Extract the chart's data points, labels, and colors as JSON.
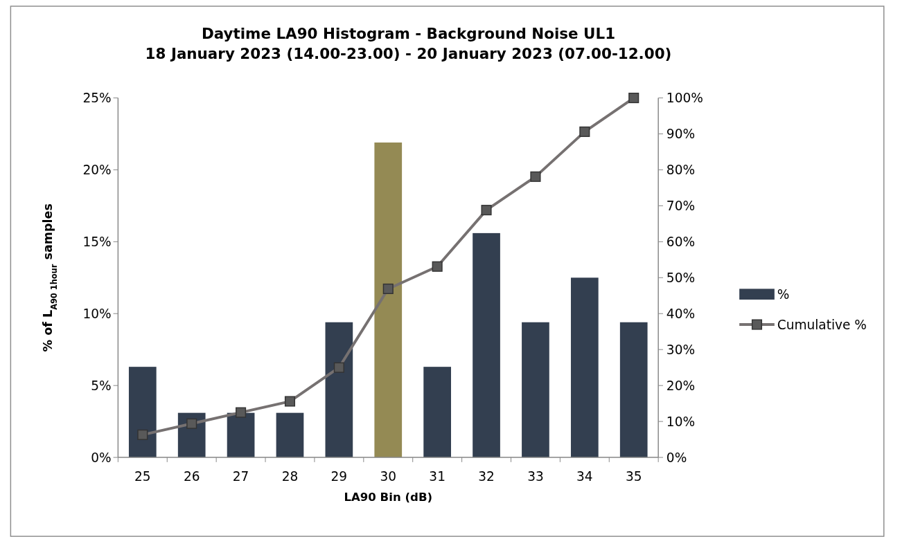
{
  "chart_data": {
    "type": "bar",
    "title": "Daytime LA90 Histogram - Background Noise UL1",
    "subtitle": "18 January 2023 (14.00-23.00) - 20 January 2023 (07.00-12.00)",
    "xlabel": "LA90 Bin (dB)",
    "ylabel": "% of L$_{A90 1hour}$ samples",
    "categories": [
      "25",
      "26",
      "27",
      "28",
      "29",
      "30",
      "31",
      "32",
      "33",
      "34",
      "35"
    ],
    "series": [
      {
        "name": "%",
        "color": "#333f50",
        "colors": [
          "#333f50",
          "#333f50",
          "#333f50",
          "#333f50",
          "#333f50",
          "#948a54",
          "#333f50",
          "#333f50",
          "#333f50",
          "#333f50",
          "#333f50"
        ],
        "values": [
          6.3,
          3.1,
          3.1,
          3.1,
          9.4,
          21.9,
          6.3,
          15.6,
          9.4,
          12.5,
          9.4
        ]
      },
      {
        "name": "Cumulative %",
        "type": "line",
        "axis": "y2",
        "color": "#767171",
        "values": [
          6.3,
          9.4,
          12.5,
          15.6,
          25,
          46.9,
          53.1,
          68.8,
          78.1,
          90.6,
          100
        ]
      }
    ],
    "ylim": [
      0,
      25
    ],
    "yticks": [
      {
        "value": 0,
        "label": "0%"
      },
      {
        "value": 5,
        "label": "5%"
      },
      {
        "value": 10,
        "label": "10%"
      },
      {
        "value": 15,
        "label": "15%"
      },
      {
        "value": 20,
        "label": "20%"
      },
      {
        "value": 25,
        "label": "25%"
      }
    ],
    "y2lim": [
      0,
      100
    ],
    "y2ticks": [
      {
        "value": 0,
        "label": "0%"
      },
      {
        "value": 10,
        "label": "10%"
      },
      {
        "value": 20,
        "label": "20%"
      },
      {
        "value": 30,
        "label": "30%"
      },
      {
        "value": 40,
        "label": "40%"
      },
      {
        "value": 50,
        "label": "50%"
      },
      {
        "value": 60,
        "label": "60%"
      },
      {
        "value": 70,
        "label": "70%"
      },
      {
        "value": 80,
        "label": "80%"
      },
      {
        "value": 90,
        "label": "90%"
      },
      {
        "value": 100,
        "label": "100%"
      }
    ],
    "legend": "right",
    "marker": "square",
    "line_style": "solid"
  }
}
